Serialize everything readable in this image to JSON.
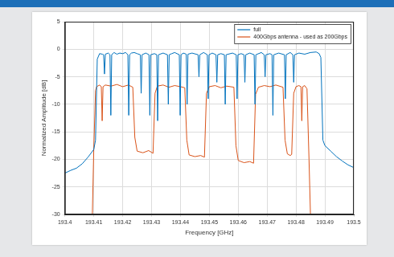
{
  "chart_data": {
    "type": "line",
    "x_label": "Frequency [GHz]",
    "y_label": "Normalized Amplitude [dB]",
    "xlim": [
      193.4,
      193.5
    ],
    "xticks": [
      193.4,
      193.41,
      193.42,
      193.43,
      193.44,
      193.45,
      193.46,
      193.47,
      193.48,
      193.49,
      193.5
    ],
    "ylim": [
      -30,
      5
    ],
    "yticks": [
      -30,
      -25,
      -20,
      -15,
      -10,
      -5,
      0,
      5
    ],
    "grid": true,
    "legend": "top-right",
    "series": [
      {
        "name": "full",
        "color": "#0072bd",
        "x": [
          193.4,
          193.402,
          193.404,
          193.406,
          193.408,
          193.41,
          193.4106,
          193.4112,
          193.412,
          193.413,
          193.4134,
          193.4137,
          193.414,
          193.415,
          193.4156,
          193.4159,
          193.4162,
          193.417,
          193.418,
          193.419,
          193.42,
          193.421,
          193.4218,
          193.4221,
          193.4224,
          193.423,
          193.424,
          193.425,
          193.4261,
          193.4264,
          193.4267,
          193.428,
          193.4291,
          193.4294,
          193.4297,
          193.431,
          193.4318,
          193.4321,
          193.4324,
          193.434,
          193.4355,
          193.4358,
          193.4361,
          193.437,
          193.438,
          193.4396,
          193.4399,
          193.4402,
          193.441,
          193.442,
          193.4423,
          193.4426,
          193.444,
          193.4461,
          193.4464,
          193.4467,
          193.448,
          193.4493,
          193.4496,
          193.4499,
          193.451,
          193.4523,
          193.4526,
          193.4529,
          193.454,
          193.4552,
          193.4555,
          193.4558,
          193.458,
          193.4593,
          193.4596,
          193.4599,
          193.461,
          193.462,
          193.4623,
          193.4626,
          193.464,
          193.4655,
          193.4658,
          193.4661,
          193.468,
          193.469,
          193.4693,
          193.4696,
          193.471,
          193.4717,
          193.472,
          193.4723,
          193.474,
          193.476,
          193.4763,
          193.4766,
          193.478,
          193.4789,
          193.4792,
          193.4795,
          193.481,
          193.483,
          193.485,
          193.487,
          193.488,
          193.4886,
          193.4893,
          193.49,
          193.492,
          193.494,
          193.496,
          193.498,
          193.5
        ],
        "values": [
          -22.5,
          -22.0,
          -21.6,
          -20.8,
          -19.6,
          -18.2,
          -16.5,
          -1.8,
          -0.8,
          -0.9,
          -1.0,
          -4.5,
          -0.9,
          -0.7,
          -1.0,
          -12.0,
          -1.0,
          -0.6,
          -0.9,
          -0.7,
          -0.8,
          -0.6,
          -1.0,
          -12.0,
          -1.0,
          -0.7,
          -0.6,
          -0.8,
          -1.0,
          -8.0,
          -1.0,
          -0.7,
          -1.0,
          -12.0,
          -1.0,
          -0.8,
          -1.0,
          -13.0,
          -1.0,
          -0.7,
          -1.0,
          -10.0,
          -1.0,
          -0.8,
          -0.6,
          -1.0,
          -12.0,
          -1.0,
          -0.7,
          -0.9,
          -10.0,
          -0.9,
          -0.7,
          -1.0,
          -5.0,
          -1.0,
          -0.6,
          -1.0,
          -9.0,
          -1.0,
          -0.7,
          -1.0,
          -6.0,
          -1.0,
          -0.8,
          -1.0,
          -10.0,
          -1.0,
          -0.7,
          -1.0,
          -9.0,
          -1.0,
          -0.8,
          -1.0,
          -6.0,
          -1.0,
          -0.7,
          -1.0,
          -10.0,
          -1.0,
          -0.6,
          -1.0,
          -5.0,
          -1.0,
          -0.8,
          -1.0,
          -12.0,
          -1.0,
          -0.7,
          -1.0,
          -9.0,
          -1.0,
          -0.6,
          -1.0,
          -6.0,
          -1.0,
          -0.7,
          -0.9,
          -0.6,
          -0.5,
          -0.8,
          -1.5,
          -16.5,
          -17.5,
          -18.5,
          -19.5,
          -20.3,
          -21.0,
          -21.5
        ]
      },
      {
        "name": "400Gbps antenna - used as 200Gbps",
        "color": "#d95319",
        "x": [
          193.4095,
          193.41,
          193.4106,
          193.411,
          193.412,
          193.4126,
          193.4129,
          193.4132,
          193.414,
          193.416,
          193.418,
          193.42,
          193.422,
          193.4235,
          193.4242,
          193.425,
          193.427,
          193.429,
          193.4305,
          193.4312,
          193.432,
          193.434,
          193.436,
          193.438,
          193.44,
          193.4415,
          193.4422,
          193.443,
          193.445,
          193.447,
          193.4483,
          193.449,
          193.45,
          193.452,
          193.454,
          193.456,
          193.4585,
          193.4592,
          193.46,
          193.462,
          193.464,
          193.4653,
          193.466,
          193.467,
          193.469,
          193.471,
          193.473,
          193.4755,
          193.4762,
          193.477,
          193.478,
          193.4785,
          193.4792,
          193.48,
          193.481,
          193.4817,
          193.482,
          193.4823,
          193.483,
          193.4838,
          193.4845,
          193.485
        ],
        "values": [
          -30,
          -18,
          -7.5,
          -6.8,
          -6.5,
          -6.8,
          -13.0,
          -6.8,
          -6.5,
          -6.7,
          -6.4,
          -6.8,
          -6.5,
          -6.9,
          -16.0,
          -18.5,
          -18.8,
          -18.4,
          -18.9,
          -8.0,
          -6.7,
          -6.5,
          -6.9,
          -6.6,
          -6.8,
          -7.0,
          -16.5,
          -19.2,
          -19.5,
          -19.3,
          -19.6,
          -8.0,
          -6.8,
          -6.6,
          -7.0,
          -6.7,
          -6.9,
          -17.5,
          -20.2,
          -20.6,
          -20.4,
          -20.7,
          -8.2,
          -6.9,
          -6.6,
          -6.8,
          -6.5,
          -6.9,
          -16.5,
          -19.0,
          -19.3,
          -19.1,
          -8.0,
          -6.8,
          -6.6,
          -6.8,
          -13.0,
          -6.8,
          -6.6,
          -7.2,
          -20,
          -30
        ]
      }
    ]
  }
}
